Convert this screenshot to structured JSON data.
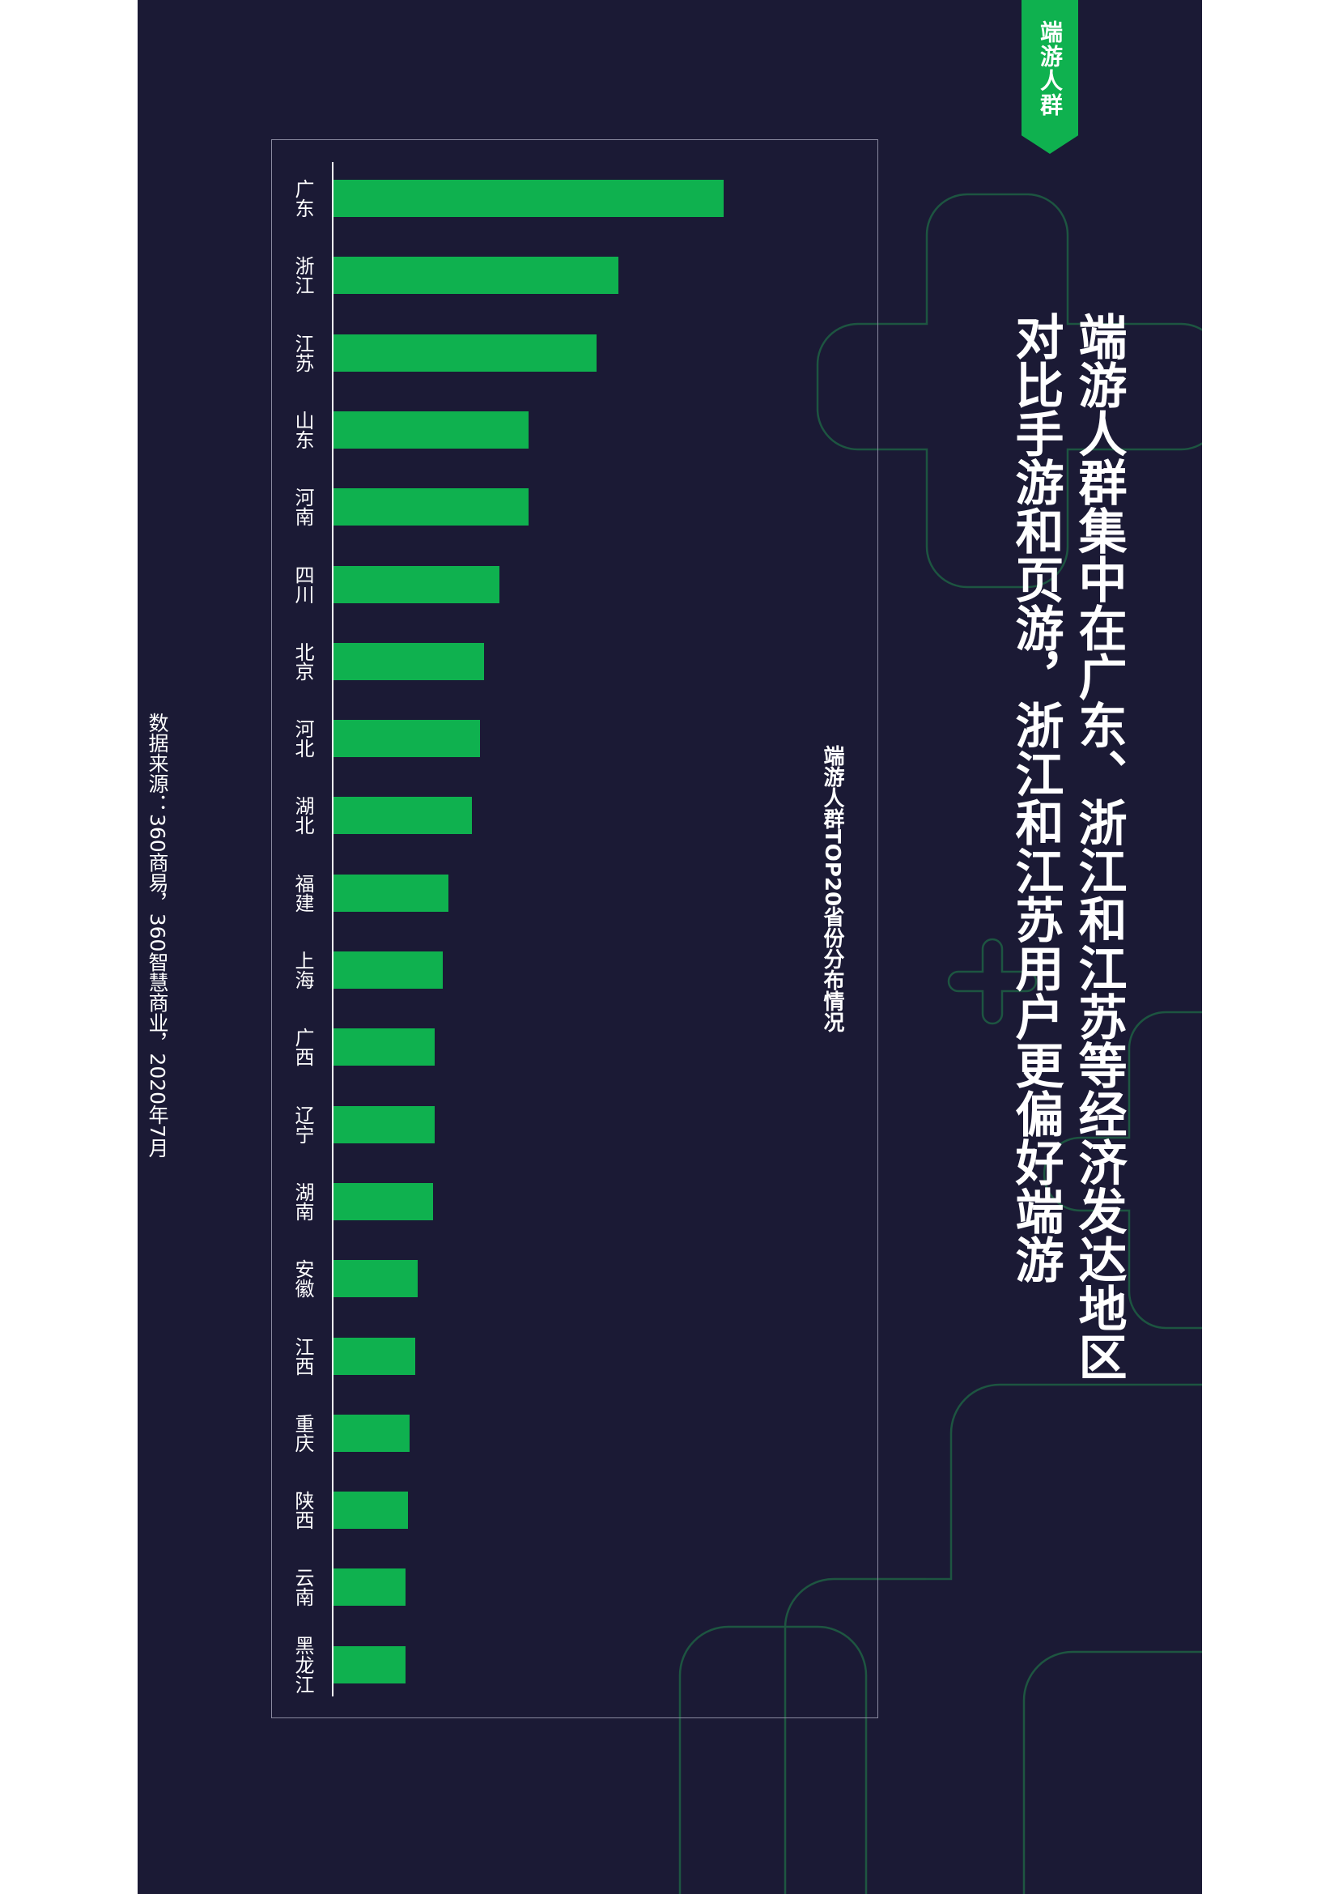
{
  "tag": "端游人群",
  "title_lines": [
    "端游人群集中在广东、浙江和江苏等经济发达地区",
    "对比手游和页游，浙江和江苏用户更偏好端游"
  ],
  "source": "数据来源：360商易，360智慧商业，2020年7月",
  "chart_data": {
    "type": "bar",
    "title": "端游人群TOP20省份分布情况",
    "orientation": "horizontal",
    "categories": [
      "广东",
      "浙江",
      "江苏",
      "山东",
      "河南",
      "四川",
      "北京",
      "河北",
      "湖北",
      "福建",
      "上海",
      "广西",
      "辽宁",
      "湖南",
      "安徽",
      "江西",
      "重庆",
      "陕西",
      "云南",
      "黑龙江"
    ],
    "values": [
      100,
      73,
      67.5,
      50,
      50,
      42.5,
      38.5,
      37.5,
      35.5,
      29.5,
      28,
      26,
      26,
      25.5,
      21.5,
      21,
      19.5,
      19,
      18.5,
      18.5
    ],
    "grid": false,
    "legend": false
  },
  "colors": {
    "background": "#1b1a35",
    "accent": "#0fb14f",
    "deco_line": "#1e5a3c"
  }
}
